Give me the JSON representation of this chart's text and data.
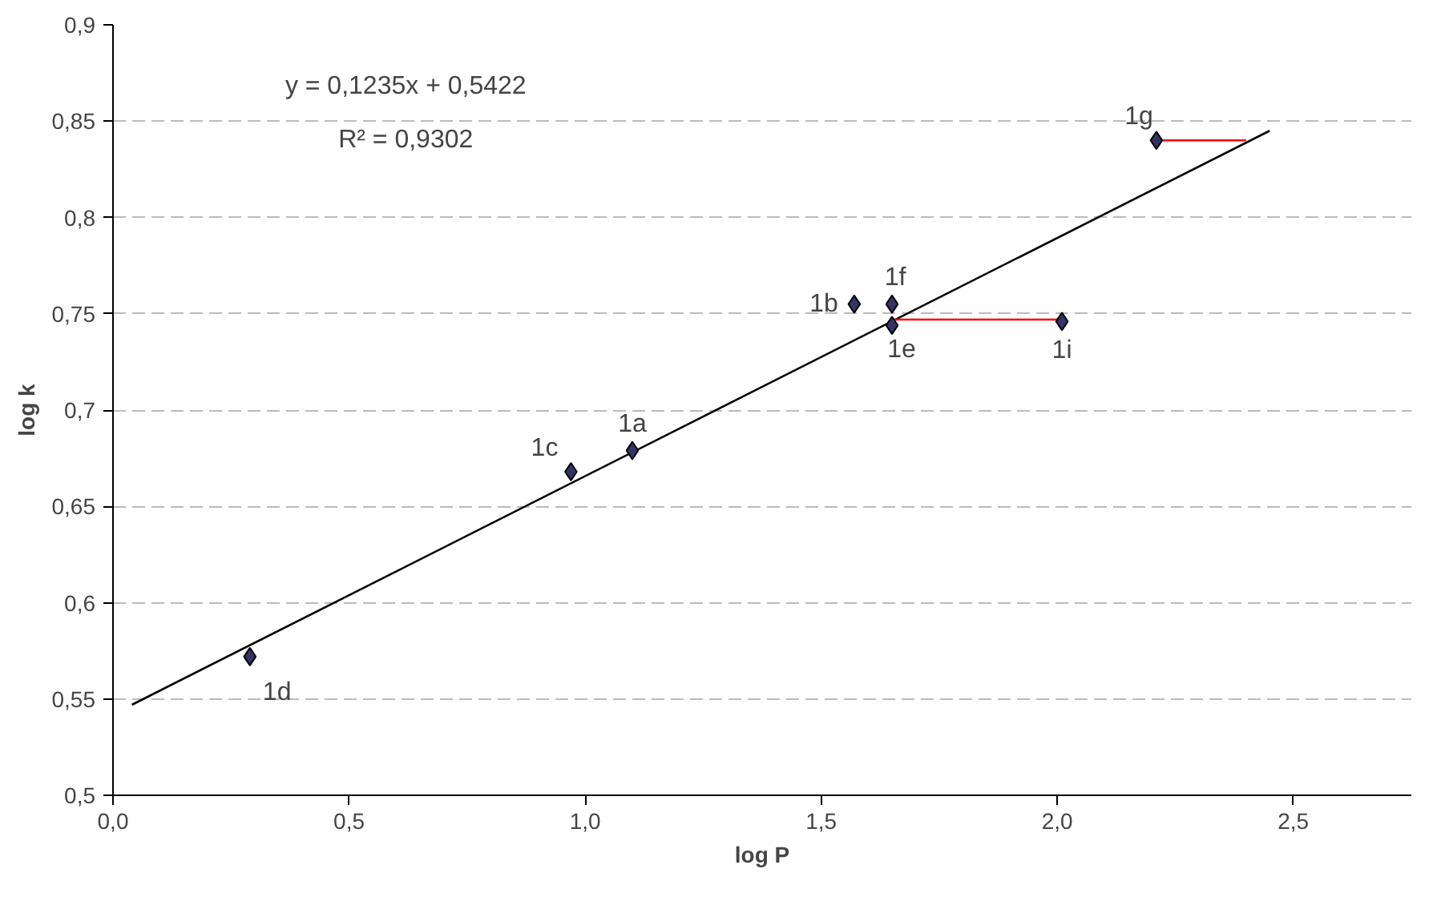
{
  "chart_data": {
    "type": "scatter",
    "xlabel": "log P",
    "ylabel": "log k",
    "marker": "diamond",
    "grid": "y",
    "xlim": [
      0,
      2.75
    ],
    "ylim": [
      0.5,
      0.9
    ],
    "xticks": [
      {
        "value": 0,
        "label": "0,0"
      },
      {
        "value": 0.5,
        "label": "0,5"
      },
      {
        "value": 1,
        "label": "1,0"
      },
      {
        "value": 1.5,
        "label": "1,5"
      },
      {
        "value": 2,
        "label": "2,0"
      },
      {
        "value": 2.5,
        "label": "2,5"
      }
    ],
    "yticks": [
      {
        "value": 0.5,
        "label": "0,5"
      },
      {
        "value": 0.55,
        "label": "0,55"
      },
      {
        "value": 0.6,
        "label": "0,6"
      },
      {
        "value": 0.65,
        "label": "0,65"
      },
      {
        "value": 0.7,
        "label": "0,7"
      },
      {
        "value": 0.75,
        "label": "0,75"
      },
      {
        "value": 0.8,
        "label": "0,8"
      },
      {
        "value": 0.85,
        "label": "0,85"
      },
      {
        "value": 0.9,
        "label": "0,9"
      }
    ],
    "series": [
      {
        "type": "line",
        "marker": "none",
        "color": "#000000",
        "x": [
          0.04,
          2.45
        ],
        "values": [
          0.547,
          0.845
        ]
      },
      {
        "type": "line",
        "marker": "none",
        "color": "#ff0000",
        "x": [
          1.65,
          2.01
        ],
        "values": [
          0.747,
          0.747
        ]
      },
      {
        "type": "line",
        "marker": "none",
        "color": "#ff0000",
        "x": [
          2.21,
          2.4
        ],
        "values": [
          0.84,
          0.84
        ]
      },
      {
        "color": "#333366",
        "x": [
          0.29,
          0.97,
          1.1,
          1.57,
          1.65,
          1.65,
          2.01,
          2.21
        ],
        "values": [
          0.572,
          0.668,
          0.679,
          0.755,
          0.755,
          0.744,
          0.746,
          0.84
        ]
      }
    ],
    "annotations": [
      "y = 0,1235x + 0,5422",
      "R² = 0,9302",
      {
        "text": "1d",
        "x": 0.29,
        "y": 0.572
      },
      {
        "text": "1c",
        "x": 0.97,
        "y": 0.668
      },
      {
        "text": "1a",
        "x": 1.1,
        "y": 0.679
      },
      {
        "text": "1b",
        "x": 1.57,
        "y": 0.755
      },
      {
        "text": "1f",
        "x": 1.65,
        "y": 0.755
      },
      {
        "text": "1e",
        "x": 1.65,
        "y": 0.744
      },
      {
        "text": "1i",
        "x": 2.01,
        "y": 0.746
      },
      {
        "text": "1g",
        "x": 2.21,
        "y": 0.84
      }
    ]
  }
}
